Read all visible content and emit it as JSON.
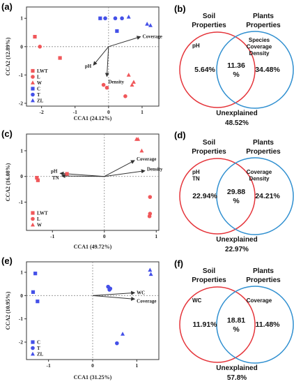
{
  "colors": {
    "red": "#f0575a",
    "blue": "#4450e8",
    "axis": "#333333",
    "venn_red": "#e5343a",
    "venn_blue": "#2f8fd0"
  },
  "chart_data": [
    {
      "type": "scatter",
      "panel": "(a)",
      "xlabel": "CCA1 (24.12%)",
      "ylabel": "CCA2 (12.89%)",
      "xlim": [
        -2.45,
        1.5
      ],
      "ylim": [
        -2.1,
        1.4
      ],
      "xticks": [
        "-2",
        "-1",
        "0",
        "1"
      ],
      "xtick_values": [
        -2,
        -1,
        0,
        1
      ],
      "yticks": [
        "-2",
        "-1",
        "0",
        "1"
      ],
      "ytick_values": [
        -2,
        -1,
        0,
        1
      ],
      "legend_position": "bottom-left",
      "series": [
        {
          "name": "LWT",
          "color": "red",
          "marker": "square",
          "points": [
            [
              -2.2,
              0.35
            ],
            [
              -1.45,
              -0.4
            ]
          ]
        },
        {
          "name": "L",
          "color": "red",
          "marker": "circle",
          "points": [
            [
              -2.05,
              0.0
            ],
            [
              -0.15,
              -1.35
            ],
            [
              0.5,
              -1.75
            ],
            [
              -0.05,
              -1.45
            ]
          ]
        },
        {
          "name": "W",
          "color": "red",
          "marker": "triangle",
          "points": [
            [
              0.6,
              -1.0
            ],
            [
              0.7,
              -1.35
            ],
            [
              0.75,
              -1.25
            ]
          ]
        },
        {
          "name": "C",
          "color": "blue",
          "marker": "square",
          "points": [
            [
              -0.25,
              1.0
            ],
            [
              0.25,
              0.55
            ]
          ]
        },
        {
          "name": "T",
          "color": "blue",
          "marker": "circle",
          "points": [
            [
              -0.1,
              1.0
            ],
            [
              0.2,
              1.0
            ],
            [
              0.4,
              1.0
            ]
          ]
        },
        {
          "name": "ZL",
          "color": "blue",
          "marker": "triangle",
          "points": [
            [
              0.6,
              1.05
            ],
            [
              1.15,
              0.8
            ],
            [
              1.25,
              0.75
            ]
          ]
        }
      ],
      "arrows": [
        {
          "label": "Coverage",
          "x": 0.95,
          "y": 0.35,
          "anchor": "start",
          "dx": 3,
          "dy": 2
        },
        {
          "label": "pH",
          "x": -0.45,
          "y": -0.65,
          "anchor": "end",
          "dx": -3,
          "dy": 4
        },
        {
          "label": "Density",
          "x": -0.05,
          "y": -1.05,
          "anchor": "start",
          "dx": 2,
          "dy": 10
        }
      ]
    },
    {
      "type": "scatter",
      "panel": "(c)",
      "xlabel": "CCA1 (49.72%)",
      "ylabel": "CCA2 (16.08%)",
      "xlim": [
        -1.5,
        1.05
      ],
      "ylim": [
        -2.1,
        1.65
      ],
      "xticks": [
        "-1",
        "0",
        "1"
      ],
      "xtick_values": [
        -1,
        0,
        1
      ],
      "yticks": [
        "-1",
        "0",
        "1"
      ],
      "ytick_values": [
        -1,
        0,
        1
      ],
      "legend_position": "bottom-left",
      "series": [
        {
          "name": "LWT",
          "color": "red",
          "marker": "square",
          "points": [
            [
              -1.3,
              -0.05
            ],
            [
              -1.28,
              -0.15
            ],
            [
              -0.72,
              0.1
            ]
          ]
        },
        {
          "name": "L",
          "color": "red",
          "marker": "circle",
          "points": [
            [
              0.88,
              -0.8
            ],
            [
              0.88,
              -1.45
            ],
            [
              0.87,
              -1.55
            ]
          ]
        },
        {
          "name": "W",
          "color": "red",
          "marker": "triangle",
          "points": [
            [
              0.62,
              1.45
            ],
            [
              0.65,
              1.45
            ],
            [
              0.72,
              1.0
            ]
          ]
        }
      ],
      "arrows": [
        {
          "label": "Coverage",
          "x": 0.58,
          "y": 0.62,
          "anchor": "start",
          "dx": 3,
          "dy": 0
        },
        {
          "label": "Density",
          "x": 0.78,
          "y": 0.22,
          "anchor": "start",
          "dx": 3,
          "dy": 0
        },
        {
          "label": "pH",
          "x": -0.85,
          "y": 0.12,
          "anchor": "end",
          "dx": -4,
          "dy": -1
        },
        {
          "label": "TN",
          "x": -0.82,
          "y": 0.02,
          "anchor": "end",
          "dx": -4,
          "dy": 5
        }
      ]
    },
    {
      "type": "scatter",
      "panel": "(e)",
      "xlabel": "CCA1 (31.25%)",
      "ylabel": "CCA2 (10.95%)",
      "xlim": [
        -1.5,
        1.5
      ],
      "ylim": [
        -2.75,
        1.45
      ],
      "xticks": [
        "-1",
        "0",
        "1"
      ],
      "xtick_values": [
        -1,
        0,
        1
      ],
      "yticks": [
        "-2",
        "-1",
        "0",
        "1"
      ],
      "ytick_values": [
        -2,
        -1,
        0,
        1
      ],
      "legend_position": "bottom-left",
      "series": [
        {
          "name": "C",
          "color": "blue",
          "marker": "square",
          "points": [
            [
              -1.3,
              0.95
            ],
            [
              -1.35,
              0.15
            ],
            [
              -1.25,
              -0.25
            ]
          ]
        },
        {
          "name": "T",
          "color": "blue",
          "marker": "circle",
          "points": [
            [
              0.35,
              0.38
            ],
            [
              0.38,
              0.25
            ],
            [
              0.4,
              0.3
            ],
            [
              0.55,
              -2.05
            ]
          ]
        },
        {
          "name": "ZL",
          "color": "blue",
          "marker": "triangle",
          "points": [
            [
              1.3,
              1.1
            ],
            [
              1.32,
              0.92
            ],
            [
              0.68,
              -1.65
            ]
          ]
        }
      ],
      "arrows": [
        {
          "label": "WC",
          "x": 0.95,
          "y": 0.12,
          "anchor": "start",
          "dx": 3,
          "dy": 2
        },
        {
          "label": "Coverage",
          "x": 0.95,
          "y": -0.15,
          "anchor": "start",
          "dx": 3,
          "dy": 5
        }
      ]
    }
  ],
  "venn": [
    {
      "panel": "(b)",
      "left_title": [
        "Soil",
        "Properties"
      ],
      "right_title": [
        "Plants",
        "Properties"
      ],
      "left_vars": [
        "pH"
      ],
      "right_vars": [
        "Species",
        "Coverage",
        "Density"
      ],
      "left_pct": "5.64%",
      "overlap_pct": [
        "11.36",
        "%"
      ],
      "right_pct": "34.48%",
      "unexplained": [
        "Unexplained",
        "48.52%"
      ]
    },
    {
      "panel": "(d)",
      "left_title": [
        "Soil",
        "Properties"
      ],
      "right_title": [
        "Plants",
        "Properties"
      ],
      "left_vars": [
        "pH",
        "TN"
      ],
      "right_vars": [
        "Coverage",
        "Density"
      ],
      "left_pct": "22.94%",
      "overlap_pct": [
        "29.88",
        "%"
      ],
      "right_pct": "24.21%",
      "unexplained": [
        "Unexplained",
        "22.97%"
      ]
    },
    {
      "panel": "(f)",
      "left_title": [
        "Soil",
        "Properties"
      ],
      "right_title": [
        "Plants",
        "Properties"
      ],
      "left_vars": [
        "WC"
      ],
      "right_vars": [
        "Coverage"
      ],
      "left_pct": "11.91%",
      "overlap_pct": [
        "18.81",
        "%"
      ],
      "right_pct": "11.48%",
      "unexplained": [
        "Unexplained",
        "57.8%"
      ]
    }
  ]
}
